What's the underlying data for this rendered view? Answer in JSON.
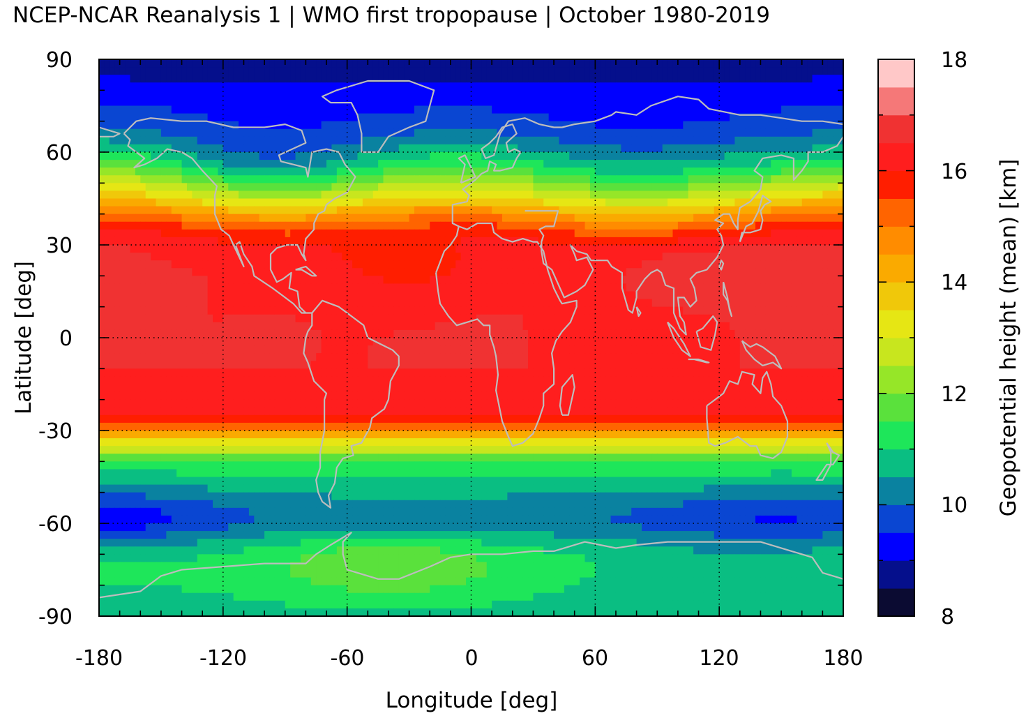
{
  "chart_data": {
    "type": "heatmap",
    "title": "NCEP-NCAR Reanalysis 1 | WMO first tropopause | October 1980-2019",
    "xlabel": "Longitude [deg]",
    "ylabel": "Latitude [deg]",
    "xlim": [
      -180,
      180
    ],
    "ylim": [
      -90,
      90
    ],
    "xticks": [
      "-180",
      "-120",
      "-60",
      "0",
      "60",
      "120",
      "180"
    ],
    "yticks": [
      "90",
      "60",
      "30",
      "0",
      "-30",
      "-60",
      "-90"
    ],
    "grid": true,
    "colorbar": {
      "label": "Geopotential height (mean) [km]",
      "range": [
        8,
        18
      ],
      "ticks": [
        "18",
        "16",
        "14",
        "12",
        "10",
        "8"
      ],
      "levels": [
        8,
        8.5,
        9,
        9.5,
        10,
        10.5,
        11,
        11.5,
        12,
        12.5,
        13,
        13.5,
        14,
        14.5,
        15,
        15.5,
        16,
        16.5,
        17,
        17.5,
        18
      ],
      "colors": [
        "#0b0b32",
        "#050f8c",
        "#0000ff",
        "#0a46d2",
        "#0a82a0",
        "#0abe82",
        "#1ee65a",
        "#5ae13c",
        "#96e628",
        "#c8e61e",
        "#e6e614",
        "#f0c80a",
        "#faaa00",
        "#ff8c00",
        "#ff6400",
        "#ff1e00",
        "#ff1e1e",
        "#f03232",
        "#f57878",
        "#ffc8c8"
      ]
    },
    "zonal_mean_profile": {
      "lat": [
        90,
        85,
        80,
        75,
        70,
        65,
        60,
        55,
        50,
        45,
        40,
        35,
        30,
        25,
        20,
        15,
        10,
        5,
        0,
        -5,
        -10,
        -15,
        -20,
        -25,
        -30,
        -35,
        -40,
        -45,
        -50,
        -55,
        -60,
        -65,
        -70,
        -75,
        -80,
        -85,
        -90
      ],
      "height_km": [
        8.8,
        8.9,
        9.2,
        9.4,
        9.6,
        10.0,
        10.6,
        11.3,
        12.3,
        13.3,
        14.6,
        15.6,
        16.2,
        16.4,
        16.5,
        16.5,
        16.5,
        16.5,
        16.5,
        16.5,
        16.5,
        16.4,
        16.3,
        16.0,
        14.8,
        13.0,
        11.6,
        10.9,
        10.6,
        10.2,
        10.1,
        10.6,
        11.0,
        11.1,
        11.0,
        10.9,
        10.8
      ]
    }
  }
}
